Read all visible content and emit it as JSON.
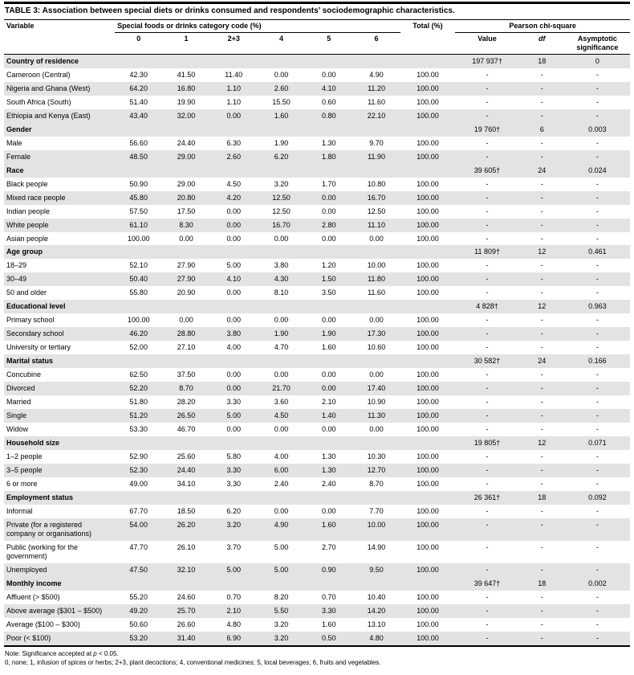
{
  "title": {
    "label": "TABLE 3:",
    "text": " Association between special diets or drinks consumed and respondents’ sociodemographic characteristics."
  },
  "header": {
    "variable": "Variable",
    "foods_group": "Special foods or drinks category code (%)",
    "total": "Total (%)",
    "chi_group": "Pearson chi-square",
    "codes": [
      "0",
      "1",
      "2+3",
      "4",
      "5",
      "6"
    ],
    "chi_value": "Value",
    "chi_df": "df",
    "chi_sig": "Asymptotic significance"
  },
  "sections": [
    {
      "name": "Country of residence",
      "chi": {
        "value": "197 937†",
        "df": "18",
        "sig": "0"
      },
      "rows": [
        {
          "label": "Cameroon (Central)",
          "values": [
            "42.30",
            "41.50",
            "11.40",
            "0.00",
            "0.00",
            "4.90"
          ],
          "total": "100.00",
          "chi": [
            "-",
            "-",
            "-"
          ]
        },
        {
          "label": "Nigeria and Ghana (West)",
          "values": [
            "64.20",
            "16.80",
            "1.10",
            "2.60",
            "4.10",
            "11.20"
          ],
          "total": "100.00",
          "chi": [
            "-",
            "-",
            "-"
          ]
        },
        {
          "label": "South Africa (South)",
          "values": [
            "51.40",
            "19.90",
            "1.10",
            "15.50",
            "0.60",
            "11.60"
          ],
          "total": "100.00",
          "chi": [
            "-",
            "-",
            "-"
          ]
        },
        {
          "label": "Ethiopia and Kenya (East)",
          "values": [
            "43.40",
            "32.00",
            "0.00",
            "1.60",
            "0.80",
            "22.10"
          ],
          "total": "100.00",
          "chi": [
            "-",
            "-",
            "-"
          ]
        }
      ]
    },
    {
      "name": "Gender",
      "chi": {
        "value": "19 760†",
        "df": "6",
        "sig": "0.003"
      },
      "rows": [
        {
          "label": "Male",
          "values": [
            "56.60",
            "24.40",
            "6.30",
            "1.90",
            "1.30",
            "9.70"
          ],
          "total": "100.00",
          "chi": [
            "-",
            "-",
            "-"
          ]
        },
        {
          "label": "Female",
          "values": [
            "48.50",
            "29.00",
            "2.60",
            "6.20",
            "1.80",
            "11.90"
          ],
          "total": "100.00",
          "chi": [
            "-",
            "-",
            "-"
          ]
        }
      ]
    },
    {
      "name": "Race",
      "chi": {
        "value": "39 605†",
        "df": "24",
        "sig": "0.024"
      },
      "rows": [
        {
          "label": "Black people",
          "values": [
            "50.90",
            "29.00",
            "4.50",
            "3.20",
            "1.70",
            "10.80"
          ],
          "total": "100.00",
          "chi": [
            "-",
            "-",
            "-"
          ]
        },
        {
          "label": "Mixed race people",
          "values": [
            "45.80",
            "20.80",
            "4.20",
            "12.50",
            "0.00",
            "16.70"
          ],
          "total": "100.00",
          "chi": [
            "-",
            "-",
            "-"
          ]
        },
        {
          "label": "Indian people",
          "values": [
            "57.50",
            "17.50",
            "0.00",
            "12.50",
            "0.00",
            "12.50"
          ],
          "total": "100.00",
          "chi": [
            "-",
            "-",
            "-"
          ]
        },
        {
          "label": "White people",
          "values": [
            "61.10",
            "8.30",
            "0.00",
            "16.70",
            "2.80",
            "11.10"
          ],
          "total": "100.00",
          "chi": [
            "-",
            "-",
            "-"
          ]
        },
        {
          "label": "Asian people",
          "values": [
            "100.00",
            "0.00",
            "0.00",
            "0.00",
            "0.00",
            "0.00"
          ],
          "total": "100.00",
          "chi": [
            "-",
            "-",
            "-"
          ]
        }
      ]
    },
    {
      "name": "Age group",
      "chi": {
        "value": "11 809†",
        "df": "12",
        "sig": "0.461"
      },
      "rows": [
        {
          "label": "18–29",
          "values": [
            "52.10",
            "27.90",
            "5.00",
            "3.80",
            "1.20",
            "10.00"
          ],
          "total": "100.00",
          "chi": [
            "-",
            "-",
            "-"
          ]
        },
        {
          "label": "30–49",
          "values": [
            "50.40",
            "27.90",
            "4.10",
            "4.30",
            "1.50",
            "11.80"
          ],
          "total": "100.00",
          "chi": [
            "-",
            "-",
            "-"
          ]
        },
        {
          "label": "50 and older",
          "values": [
            "55.80",
            "20.90",
            "0.00",
            "8.10",
            "3.50",
            "11.60"
          ],
          "total": "100.00",
          "chi": [
            "-",
            "-",
            "-"
          ]
        }
      ]
    },
    {
      "name": "Educational level",
      "chi": {
        "value": "4 828†",
        "df": "12",
        "sig": "0.963"
      },
      "rows": [
        {
          "label": "Primary school",
          "values": [
            "100.00",
            "0.00",
            "0.00",
            "0.00",
            "0.00",
            "0.00"
          ],
          "total": "100.00",
          "chi": [
            "-",
            "-",
            "-"
          ]
        },
        {
          "label": "Secondary school",
          "values": [
            "46.20",
            "28.80",
            "3.80",
            "1.90",
            "1.90",
            "17.30"
          ],
          "total": "100.00",
          "chi": [
            "-",
            "-",
            "-"
          ]
        },
        {
          "label": "University or tertiary",
          "values": [
            "52.00",
            "27.10",
            "4.00",
            "4.70",
            "1.60",
            "10.60"
          ],
          "total": "100.00",
          "chi": [
            "-",
            "-",
            "-"
          ]
        }
      ]
    },
    {
      "name": "Marital status",
      "chi": {
        "value": "30 582†",
        "df": "24",
        "sig": "0.166"
      },
      "rows": [
        {
          "label": "Concubine",
          "values": [
            "62.50",
            "37.50",
            "0.00",
            "0.00",
            "0.00",
            "0.00"
          ],
          "total": "100.00",
          "chi": [
            "-",
            "-",
            "-"
          ]
        },
        {
          "label": "Divorced",
          "values": [
            "52.20",
            "8.70",
            "0.00",
            "21.70",
            "0.00",
            "17.40"
          ],
          "total": "100.00",
          "chi": [
            "-",
            "-",
            "-"
          ]
        },
        {
          "label": "Married",
          "values": [
            "51.80",
            "28.20",
            "3.30",
            "3.60",
            "2.10",
            "10.90"
          ],
          "total": "100.00",
          "chi": [
            "-",
            "-",
            "-"
          ]
        },
        {
          "label": "Single",
          "values": [
            "51.20",
            "26.50",
            "5.00",
            "4.50",
            "1.40",
            "11.30"
          ],
          "total": "100.00",
          "chi": [
            "-",
            "-",
            "-"
          ]
        },
        {
          "label": "Widow",
          "values": [
            "53.30",
            "46.70",
            "0.00",
            "0.00",
            "0.00",
            "0.00"
          ],
          "total": "100.00",
          "chi": [
            "-",
            "-",
            "-"
          ]
        }
      ]
    },
    {
      "name": "Household size",
      "chi": {
        "value": "19 805†",
        "df": "12",
        "sig": "0.071"
      },
      "rows": [
        {
          "label": "1–2 people",
          "values": [
            "52.90",
            "25.60",
            "5.80",
            "4.00",
            "1.30",
            "10.30"
          ],
          "total": "100.00",
          "chi": [
            "-",
            "-",
            "-"
          ]
        },
        {
          "label": "3–5 people",
          "values": [
            "52.30",
            "24.40",
            "3.30",
            "6.00",
            "1.30",
            "12.70"
          ],
          "total": "100.00",
          "chi": [
            "-",
            "-",
            "-"
          ]
        },
        {
          "label": "6 or more",
          "values": [
            "49.00",
            "34.10",
            "3.30",
            "2.40",
            "2.40",
            "8.70"
          ],
          "total": "100.00",
          "chi": [
            "-",
            "-",
            "-"
          ]
        }
      ]
    },
    {
      "name": "Employment status",
      "chi": {
        "value": "26 361†",
        "df": "18",
        "sig": "0.092"
      },
      "rows": [
        {
          "label": "Informal",
          "values": [
            "67.70",
            "18.50",
            "6.20",
            "0.00",
            "0.00",
            "7.70"
          ],
          "total": "100.00",
          "chi": [
            "-",
            "-",
            "-"
          ]
        },
        {
          "label": "Private (for a registered company or organisations)",
          "values": [
            "54.00",
            "26.20",
            "3.20",
            "4.90",
            "1.60",
            "10.00"
          ],
          "total": "100.00",
          "chi": [
            "-",
            "-",
            "-"
          ]
        },
        {
          "label": "Public (working for the government)",
          "values": [
            "47.70",
            "26.10",
            "3.70",
            "5.00",
            "2.70",
            "14.90"
          ],
          "total": "100.00",
          "chi": [
            "-",
            "-",
            "-"
          ]
        },
        {
          "label": "Unemployed",
          "values": [
            "47.50",
            "32.10",
            "5.00",
            "5.00",
            "0.90",
            "9.50"
          ],
          "total": "100.00",
          "chi": [
            "-",
            "-",
            "-"
          ]
        }
      ]
    },
    {
      "name": "Monthly income",
      "chi": {
        "value": "39 647†",
        "df": "18",
        "sig": "0.002"
      },
      "rows": [
        {
          "label": "Affluent (> $500)",
          "values": [
            "55.20",
            "24.60",
            "0.70",
            "8.20",
            "0.70",
            "10.40"
          ],
          "total": "100.00",
          "chi": [
            "-",
            "-",
            "-"
          ]
        },
        {
          "label": "Above average ($301 – $500)",
          "values": [
            "49.20",
            "25.70",
            "2.10",
            "5.50",
            "3.30",
            "14.20"
          ],
          "total": "100.00",
          "chi": [
            "-",
            "-",
            "-"
          ]
        },
        {
          "label": "Average ($100 – $300)",
          "values": [
            "50.60",
            "26.60",
            "4.80",
            "3.20",
            "1.60",
            "13.10"
          ],
          "total": "100.00",
          "chi": [
            "-",
            "-",
            "-"
          ]
        },
        {
          "label": "Poor (< $100)",
          "values": [
            "53.20",
            "31.40",
            "6.90",
            "3.20",
            "0.50",
            "4.80"
          ],
          "total": "100.00",
          "chi": [
            "-",
            "-",
            "-"
          ]
        }
      ]
    }
  ],
  "notes": {
    "line1_prefix": "Note: Significance accepted at ",
    "line1_italic": "p",
    "line1_suffix": " < 0.05.",
    "line2": "0, none; 1, infusion of spices or herbs; 2+3, plant decoctions; 4, conventional medicines; 5, local beverages; 6, fruits and vegetables."
  }
}
